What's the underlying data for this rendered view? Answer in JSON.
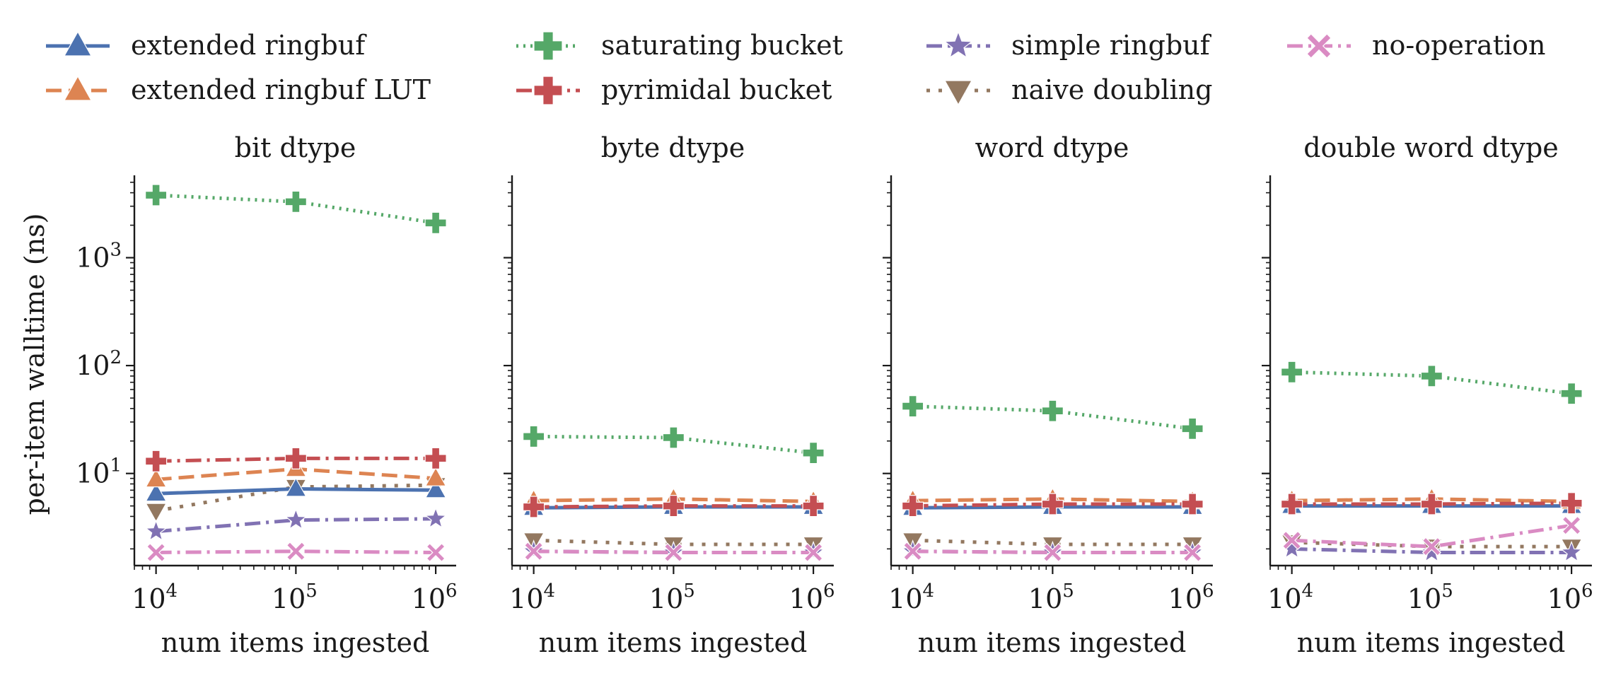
{
  "chart_data": {
    "type": "line",
    "x": [
      10000,
      100000,
      1000000
    ],
    "x_tick_labels": [
      {
        "base": "10",
        "exp": "4"
      },
      {
        "base": "10",
        "exp": "5"
      },
      {
        "base": "10",
        "exp": "6"
      }
    ],
    "y_tick_labels": [
      {
        "base": "10",
        "exp": "1"
      },
      {
        "base": "10",
        "exp": "2"
      },
      {
        "base": "10",
        "exp": "3"
      }
    ],
    "xscale": "log",
    "yscale": "log",
    "ylim": [
      1.4,
      5800
    ],
    "xlabel": "num items ingested",
    "ylabel": "per-item walltime (ns)",
    "grid": false,
    "legend_placement": "top, above panels, 4 columns",
    "legend": [
      {
        "name": "extended ringbuf",
        "color": "#4c72b0",
        "marker": "triangle-up",
        "dash": "solid"
      },
      {
        "name": "extended ringbuf LUT",
        "color": "#dd8452",
        "marker": "triangle-up",
        "dash": "dashed"
      },
      {
        "name": "saturating bucket",
        "color": "#55a868",
        "marker": "plus",
        "dash": "dotted"
      },
      {
        "name": "pyrimidal bucket",
        "color": "#c44e52",
        "marker": "plus",
        "dash": "dashdot"
      },
      {
        "name": "simple ringbuf",
        "color": "#8172b3",
        "marker": "star",
        "dash": "dashdot"
      },
      {
        "name": "naive doubling",
        "color": "#937860",
        "marker": "triangle-down",
        "dash": "loosedot"
      },
      {
        "name": "no-operation",
        "color": "#da8bc3",
        "marker": "x",
        "dash": "dashdot"
      }
    ],
    "panels": [
      {
        "title": "bit dtype",
        "series": [
          {
            "name": "extended ringbuf",
            "values": [
              6.5,
              7.2,
              7.0
            ]
          },
          {
            "name": "extended ringbuf LUT",
            "values": [
              8.8,
              11.0,
              9.0
            ]
          },
          {
            "name": "saturating bucket",
            "values": [
              3800,
              3300,
              2100
            ]
          },
          {
            "name": "pyrimidal bucket",
            "values": [
              13.0,
              13.8,
              13.8
            ]
          },
          {
            "name": "simple ringbuf",
            "values": [
              2.9,
              3.7,
              3.8
            ]
          },
          {
            "name": "naive doubling",
            "values": [
              4.5,
              7.5,
              7.8
            ]
          },
          {
            "name": "no-operation",
            "values": [
              1.85,
              1.9,
              1.85
            ]
          }
        ]
      },
      {
        "title": "byte dtype",
        "series": [
          {
            "name": "extended ringbuf",
            "values": [
              4.8,
              4.9,
              4.9
            ]
          },
          {
            "name": "extended ringbuf LUT",
            "values": [
              5.6,
              5.8,
              5.5
            ]
          },
          {
            "name": "saturating bucket",
            "values": [
              22,
              21.5,
              15.5
            ]
          },
          {
            "name": "pyrimidal bucket",
            "values": [
              4.9,
              5.0,
              5.0
            ]
          },
          {
            "name": "simple ringbuf",
            "values": [
              1.9,
              1.85,
              1.85
            ]
          },
          {
            "name": "naive doubling",
            "values": [
              2.4,
              2.2,
              2.2
            ]
          },
          {
            "name": "no-operation",
            "values": [
              1.9,
              1.85,
              1.85
            ]
          }
        ]
      },
      {
        "title": "word dtype",
        "series": [
          {
            "name": "extended ringbuf",
            "values": [
              4.8,
              4.9,
              4.9
            ]
          },
          {
            "name": "extended ringbuf LUT",
            "values": [
              5.6,
              5.8,
              5.5
            ]
          },
          {
            "name": "saturating bucket",
            "values": [
              42,
              38,
              26
            ]
          },
          {
            "name": "pyrimidal bucket",
            "values": [
              5.0,
              5.2,
              5.2
            ]
          },
          {
            "name": "simple ringbuf",
            "values": [
              1.9,
              1.85,
              1.85
            ]
          },
          {
            "name": "naive doubling",
            "values": [
              2.4,
              2.2,
              2.2
            ]
          },
          {
            "name": "no-operation",
            "values": [
              1.9,
              1.85,
              1.85
            ]
          }
        ]
      },
      {
        "title": "double word dtype",
        "series": [
          {
            "name": "extended ringbuf",
            "values": [
              5.0,
              5.0,
              5.0
            ]
          },
          {
            "name": "extended ringbuf LUT",
            "values": [
              5.6,
              5.8,
              5.5
            ]
          },
          {
            "name": "saturating bucket",
            "values": [
              87,
              80,
              55
            ]
          },
          {
            "name": "pyrimidal bucket",
            "values": [
              5.2,
              5.2,
              5.3
            ]
          },
          {
            "name": "simple ringbuf",
            "values": [
              2.0,
              1.85,
              1.85
            ]
          },
          {
            "name": "naive doubling",
            "values": [
              2.3,
              2.1,
              2.1
            ]
          },
          {
            "name": "no-operation",
            "values": [
              2.4,
              2.1,
              3.3
            ]
          }
        ]
      }
    ]
  }
}
